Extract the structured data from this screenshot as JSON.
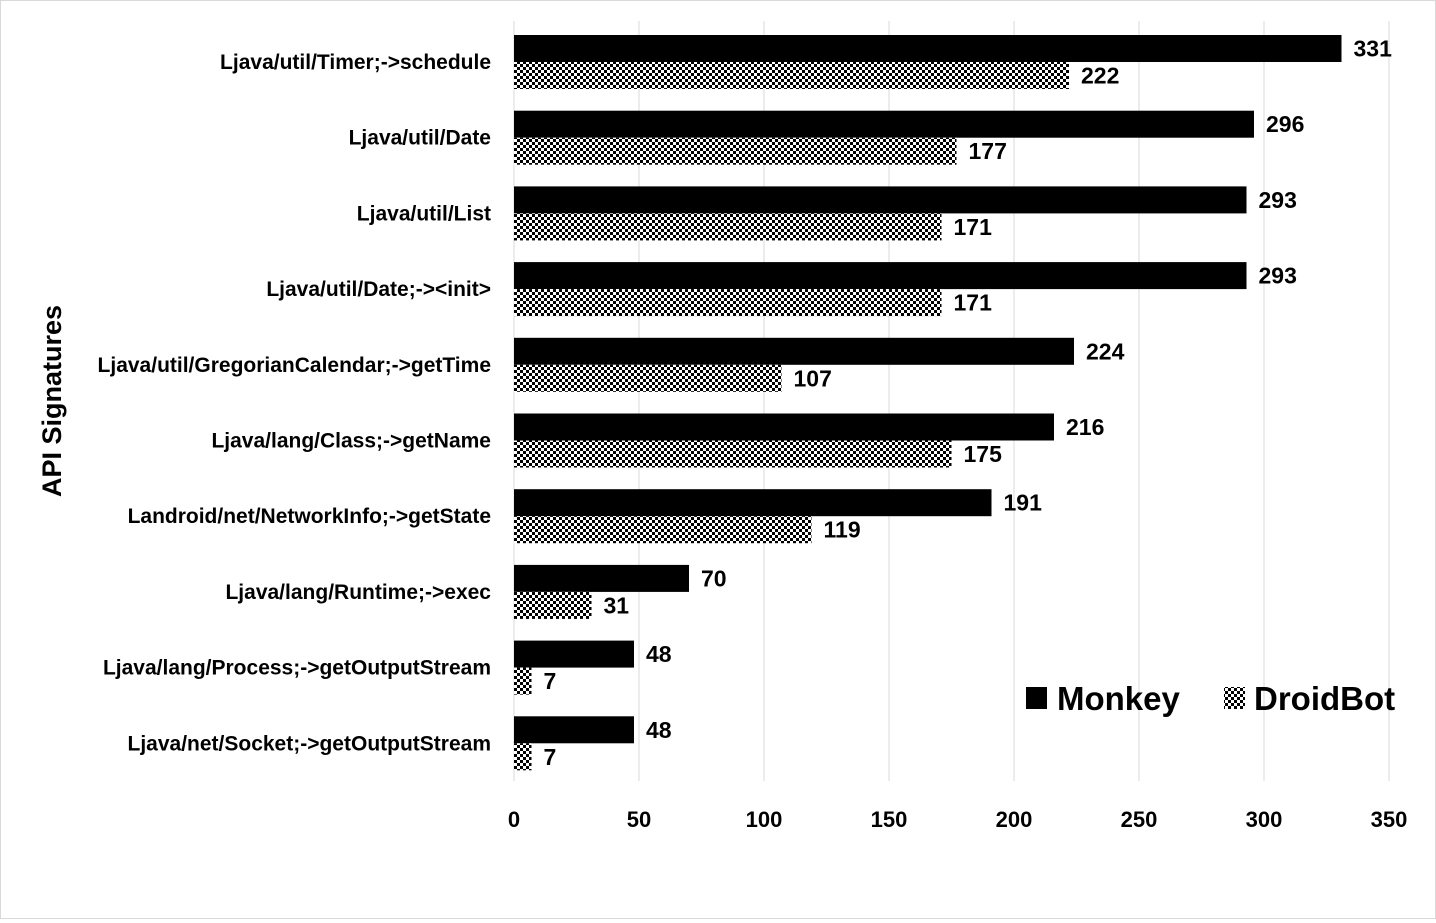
{
  "chart_data": {
    "type": "bar",
    "orientation": "horizontal",
    "ylabel": "API Signatures",
    "xlabel": "",
    "title": "",
    "xlim": [
      0,
      350
    ],
    "x_ticks": [
      0,
      50,
      100,
      150,
      200,
      250,
      300,
      350
    ],
    "grid": "vertical",
    "legend_position": "bottom-right",
    "categories": [
      "Ljava/util/Timer;->schedule",
      "Ljava/util/Date",
      "Ljava/util/List",
      "Ljava/util/Date;-><init>",
      "Ljava/util/GregorianCalendar;->getTime",
      "Ljava/lang/Class;->getName",
      "Landroid/net/NetworkInfo;->getState",
      "Ljava/lang/Runtime;->exec",
      "Ljava/lang/Process;->getOutputStream",
      "Ljava/net/Socket;->getOutputStream"
    ],
    "series": [
      {
        "name": "Monkey",
        "fill": "solid",
        "color": "#000000",
        "values": [
          331,
          296,
          293,
          293,
          224,
          216,
          191,
          70,
          48,
          48
        ]
      },
      {
        "name": "DroidBot",
        "fill": "dotted-pattern",
        "color": "#000000",
        "values": [
          222,
          177,
          171,
          171,
          107,
          175,
          119,
          31,
          7,
          7
        ]
      }
    ]
  }
}
